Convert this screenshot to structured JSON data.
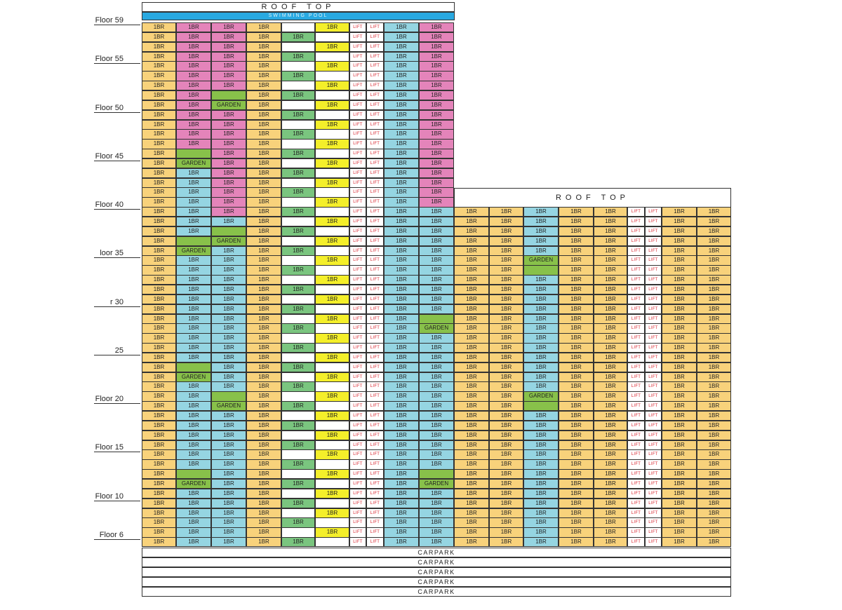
{
  "colors": {
    "yellow": "#f8d27b",
    "pink": "#e484ba",
    "blue": "#95d5e2",
    "green": "#7ac57f",
    "garden": "#88c14a",
    "empty": "#ffffff",
    "bright_yellow": "#f4ef2a",
    "pool": "#29a9e1",
    "lift_text": "#d8262f"
  },
  "tower_a": {
    "roof_label": "ROOF TOP",
    "pool_label": "SWIMMING POOL",
    "columns": [
      "unit",
      "unit",
      "unit",
      "unit",
      "plain",
      "plain",
      "lift",
      "lift",
      "unit",
      "unit"
    ],
    "floor_labels": [
      {
        "floor": 59,
        "text": "Floor 59"
      },
      {
        "floor": 55,
        "text": "Floor 55"
      },
      {
        "floor": 50,
        "text": "Floor 50"
      },
      {
        "floor": 45,
        "text": "Floor 45"
      },
      {
        "floor": 40,
        "text": "Floor 40"
      },
      {
        "floor": 35,
        "text": "loor 35"
      },
      {
        "floor": 30,
        "text": "r 30"
      },
      {
        "floor": 25,
        "text": "25"
      },
      {
        "floor": 20,
        "text": "Floor 20"
      },
      {
        "floor": 15,
        "text": "Floor 15"
      },
      {
        "floor": 10,
        "text": "Floor 10"
      },
      {
        "floor": 6,
        "text": "Floor 6"
      }
    ],
    "unit_text": "1BR",
    "lift_text": "LIFT",
    "garden_text": "GARDEN"
  },
  "tower_b": {
    "roof_label": "ROOF TOP",
    "unit_text": "1BR",
    "lift_text": "LIFT",
    "garden_text": "GARDEN"
  },
  "carpark": {
    "labels": [
      "CARPARK",
      "CARPARK",
      "CARPARK",
      "CARPARK",
      "CARPARK"
    ]
  }
}
